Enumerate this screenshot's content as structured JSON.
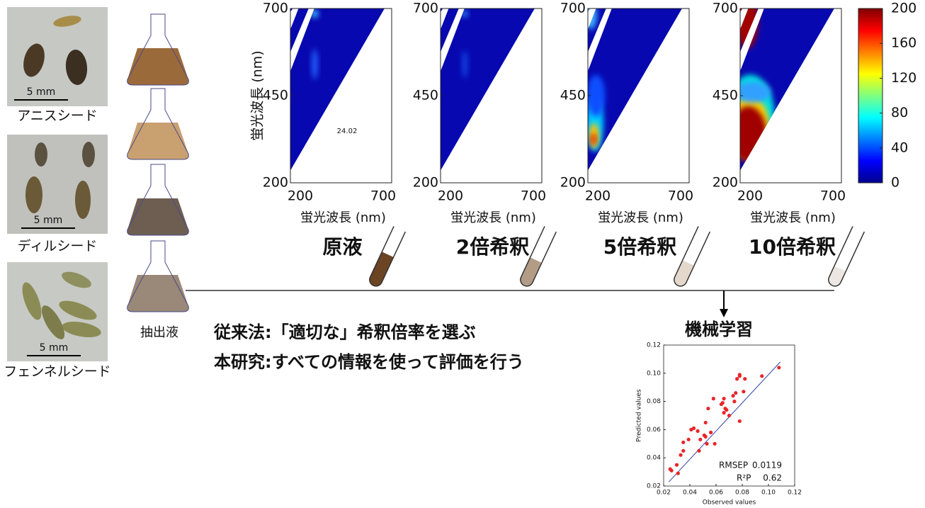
{
  "seeds": [
    {
      "label": "アニスシード",
      "scale_label": "5 mm"
    },
    {
      "label": "ディルシード",
      "scale_label": "5 mm"
    },
    {
      "label": "フェンネルシード",
      "scale_label": "5 mm"
    }
  ],
  "extract_label": "抽出液",
  "ml_label": "機械学習",
  "statements": [
    "従来法:「適切な」希釈倍率を選ぶ",
    "本研究:すべての情報を使って評価を行う"
  ],
  "colorbar": {
    "lim": [
      0,
      200
    ],
    "ticks": [
      0,
      40,
      80,
      120,
      160,
      200
    ]
  },
  "chart_data": [
    {
      "type": "heatmap",
      "title": "原液",
      "xlabel": "蛍光波長 (nm)",
      "ylabel": "蛍光波長 (nm)",
      "annotation": "24.02",
      "xlim": [
        200,
        700
      ],
      "ylim": [
        200,
        700
      ],
      "xticks": [
        200,
        700
      ],
      "yticks": [
        200,
        450,
        700
      ]
    },
    {
      "type": "heatmap",
      "title": "2倍希釈",
      "xlabel": "蛍光波長 (nm)",
      "xlim": [
        200,
        700
      ],
      "ylim": [
        200,
        700
      ],
      "xticks": [
        200,
        700
      ],
      "yticks": [
        200,
        450,
        700
      ]
    },
    {
      "type": "heatmap",
      "title": "5倍希釈",
      "xlabel": "蛍光波長 (nm)",
      "xlim": [
        200,
        700
      ],
      "ylim": [
        200,
        700
      ],
      "xticks": [
        200,
        700
      ],
      "yticks": [
        200,
        450,
        700
      ]
    },
    {
      "type": "heatmap",
      "title": "10倍希釈",
      "xlabel": "蛍光波長 (nm)",
      "xlim": [
        200,
        700
      ],
      "ylim": [
        200,
        700
      ],
      "xticks": [
        200,
        700
      ],
      "yticks": [
        200,
        450,
        700
      ]
    },
    {
      "type": "scatter",
      "xlabel": "Observed values",
      "ylabel": "Predicted values",
      "color": "#e8262a",
      "xlim": [
        0.02,
        0.12
      ],
      "ylim": [
        0.02,
        0.12
      ],
      "xticks": [
        0.02,
        0.04,
        0.06,
        0.08,
        {
          "value": 0.1,
          "label": "0.10"
        },
        0.12
      ],
      "yticks": [
        0.02,
        0.04,
        0.06,
        0.08,
        {
          "value": 0.1,
          "label": "0.10"
        },
        0.12
      ],
      "x": [
        0.025,
        0.026,
        0.031,
        0.03,
        0.033,
        0.035,
        0.035,
        0.039,
        0.041,
        0.043,
        0.046,
        0.047,
        0.048,
        0.051,
        0.052,
        0.052,
        0.053,
        0.054,
        0.056,
        0.058,
        0.059,
        0.064,
        0.065,
        0.066,
        0.066,
        0.067,
        0.068,
        0.07,
        0.073,
        0.074,
        0.075,
        0.076,
        0.078,
        0.078,
        0.078,
        0.081,
        0.082,
        0.095,
        0.108
      ],
      "y": [
        0.032,
        0.031,
        0.029,
        0.035,
        0.042,
        0.045,
        0.051,
        0.053,
        0.06,
        0.061,
        0.059,
        0.045,
        0.053,
        0.056,
        0.055,
        0.065,
        0.05,
        0.075,
        0.058,
        0.082,
        0.05,
        0.078,
        0.079,
        0.082,
        0.072,
        0.075,
        0.074,
        0.07,
        0.084,
        0.08,
        0.086,
        0.096,
        0.099,
        0.098,
        0.066,
        0.087,
        0.096,
        0.098,
        0.104
      ],
      "fit_line": {
        "color": "#3344aa",
        "x": [
          0.024,
          0.109
        ],
        "y": [
          0.023,
          0.108
        ]
      },
      "metrics": [
        {
          "name": "RMSEP",
          "value": 0.0119
        },
        {
          "name": "R²P",
          "value": 0.62
        }
      ]
    }
  ]
}
